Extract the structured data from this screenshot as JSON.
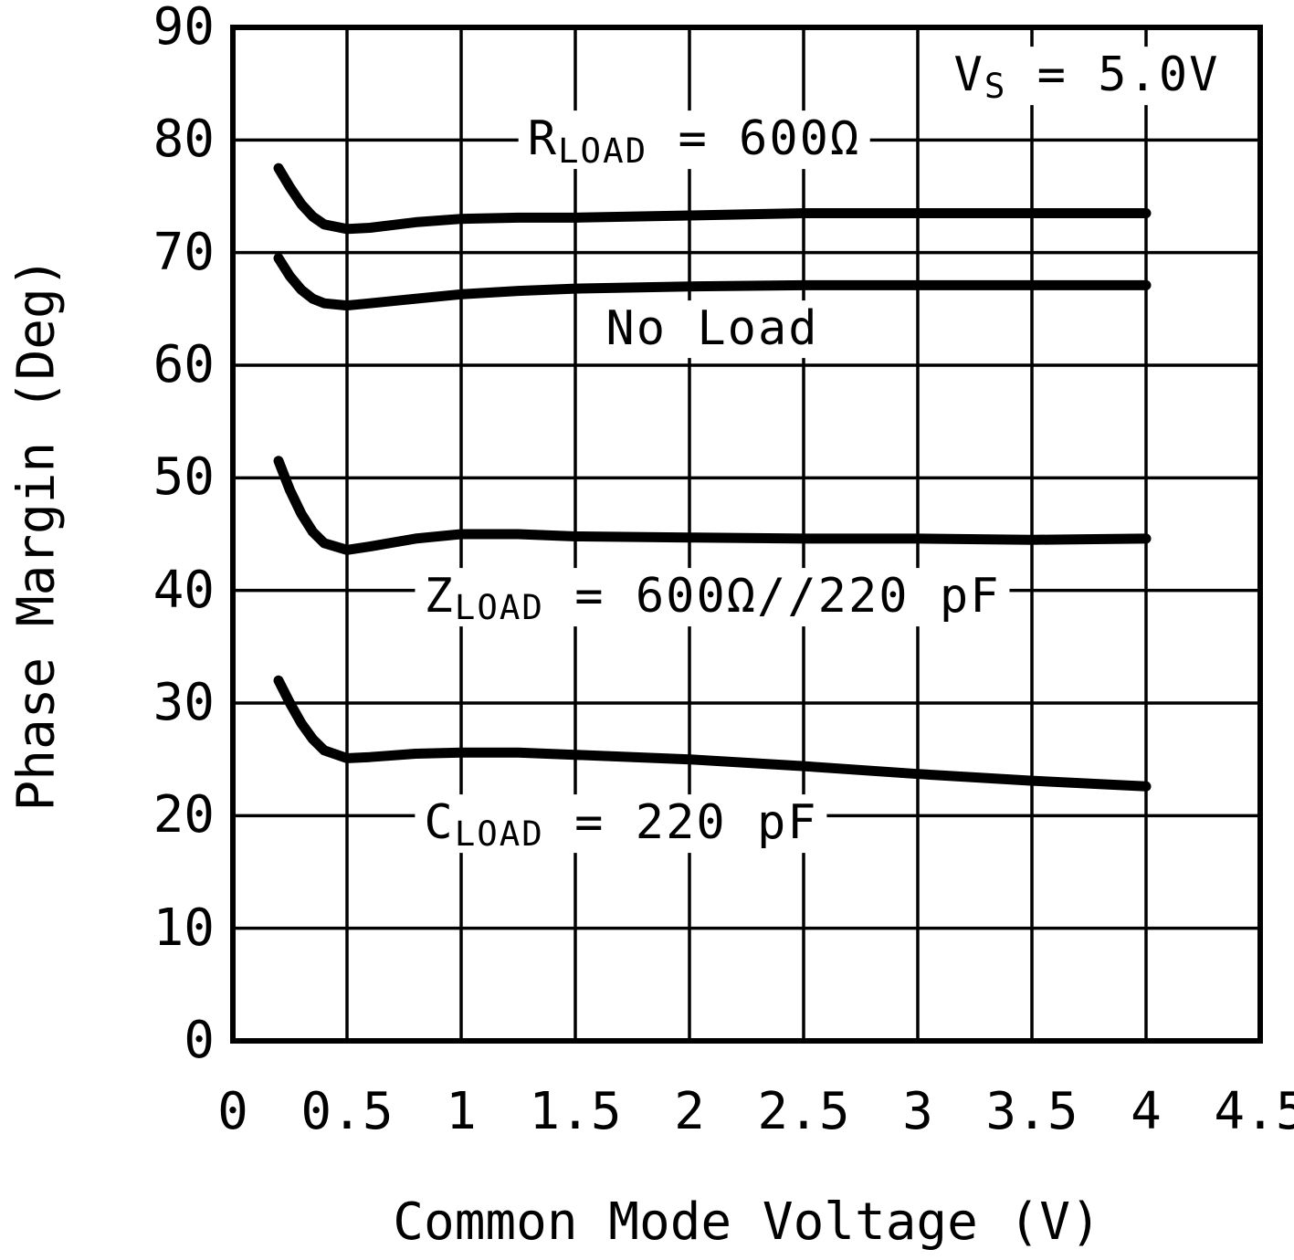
{
  "chart_data": {
    "type": "line",
    "title": "",
    "xlabel": "Common Mode Voltage (V)",
    "ylabel": "Phase Margin (Deg)",
    "xlim": [
      0,
      4.5
    ],
    "ylim": [
      0,
      90
    ],
    "grid": true,
    "line_color": "#000000",
    "x_ticks": [
      0,
      0.5,
      1,
      1.5,
      2,
      2.5,
      3,
      3.5,
      4,
      4.5
    ],
    "x_tick_labels": [
      "0",
      "0.5",
      "1",
      "1.5",
      "2",
      "2.5",
      "3",
      "3.5",
      "4",
      "4.5"
    ],
    "y_ticks": [
      0,
      10,
      20,
      30,
      40,
      50,
      60,
      70,
      80,
      90
    ],
    "y_tick_labels": [
      "0",
      "10",
      "20",
      "30",
      "40",
      "50",
      "60",
      "70",
      "80",
      "90"
    ],
    "annotation": {
      "pre": "V",
      "sub": "S",
      "post": " = 5.0V",
      "pos": [
        3.74,
        85.7
      ]
    },
    "series": [
      {
        "id": "rload-600",
        "name": "RLOAD = 600 Ohm",
        "label": {
          "pre": "R",
          "sub": "LOAD",
          "post": " = 600Ω",
          "pos": [
            2.02,
            80
          ]
        },
        "x": [
          0.2,
          0.25,
          0.3,
          0.35,
          0.4,
          0.5,
          0.6,
          0.8,
          1.0,
          1.25,
          1.5,
          2.0,
          2.5,
          3.0,
          3.5,
          4.0
        ],
        "y": [
          77.5,
          75.8,
          74.3,
          73.2,
          72.5,
          72.1,
          72.2,
          72.7,
          73.0,
          73.1,
          73.1,
          73.3,
          73.5,
          73.5,
          73.5,
          73.5
        ]
      },
      {
        "id": "no-load",
        "name": "No Load",
        "label": {
          "pre": "No Load",
          "sub": "",
          "post": "",
          "pos": [
            2.1,
            63.2
          ]
        },
        "x": [
          0.2,
          0.25,
          0.3,
          0.35,
          0.4,
          0.5,
          0.6,
          0.8,
          1.0,
          1.25,
          1.5,
          2.0,
          2.5,
          3.0,
          3.5,
          4.0
        ],
        "y": [
          69.5,
          67.9,
          66.7,
          65.9,
          65.5,
          65.3,
          65.5,
          65.9,
          66.3,
          66.6,
          66.8,
          67.0,
          67.1,
          67.1,
          67.1,
          67.1
        ]
      },
      {
        "id": "zload-600-220pf",
        "name": "ZLOAD = 600 Ohm // 220 pF",
        "label": {
          "pre": "Z",
          "sub": "LOAD",
          "post": " = 600Ω//220 pF",
          "pos": [
            2.1,
            39.4
          ]
        },
        "x": [
          0.2,
          0.25,
          0.3,
          0.35,
          0.4,
          0.5,
          0.6,
          0.8,
          1.0,
          1.25,
          1.5,
          2.0,
          2.5,
          3.0,
          3.5,
          4.0
        ],
        "y": [
          51.5,
          48.9,
          46.8,
          45.2,
          44.2,
          43.6,
          43.9,
          44.6,
          45.0,
          45.0,
          44.8,
          44.7,
          44.6,
          44.6,
          44.5,
          44.6
        ]
      },
      {
        "id": "cload-220pf",
        "name": "CLOAD = 220 pF",
        "label": {
          "pre": "C",
          "sub": "LOAD",
          "post": " = 220 pF",
          "pos": [
            1.7,
            19.3
          ]
        },
        "x": [
          0.2,
          0.25,
          0.3,
          0.35,
          0.4,
          0.5,
          0.6,
          0.8,
          1.0,
          1.25,
          1.5,
          2.0,
          2.5,
          3.0,
          3.5,
          4.0
        ],
        "y": [
          32.0,
          30.0,
          28.2,
          26.8,
          25.8,
          25.1,
          25.2,
          25.5,
          25.6,
          25.6,
          25.4,
          25.0,
          24.4,
          23.7,
          23.1,
          22.6
        ]
      }
    ]
  }
}
